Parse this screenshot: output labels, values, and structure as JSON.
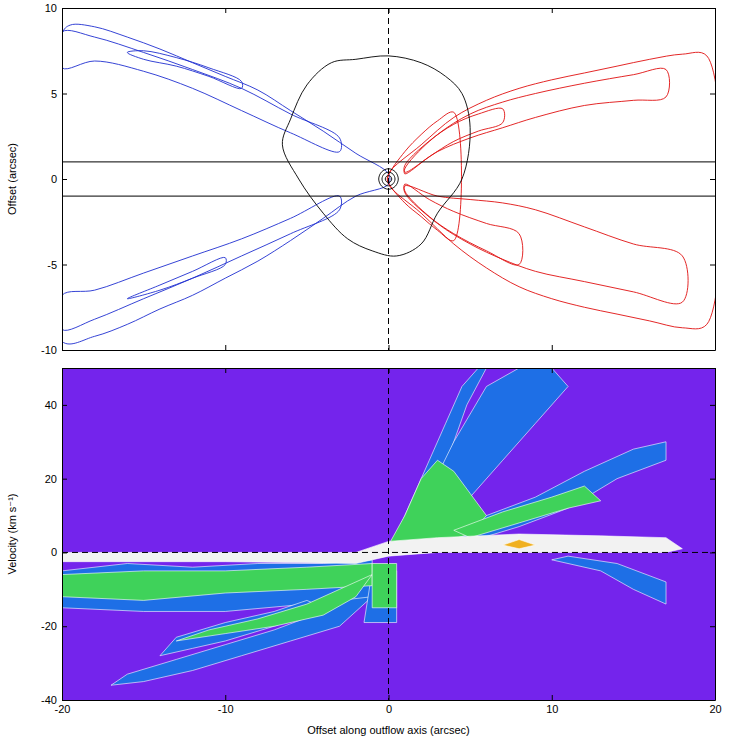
{
  "chart_data": [
    {
      "type": "contour",
      "ylabel": "Offset (arcsec)",
      "xlim": [
        -20,
        20
      ],
      "ylim": [
        -10,
        10
      ],
      "xticks": [
        -20,
        -10,
        0,
        10,
        20
      ],
      "yticks": [
        -10,
        -5,
        0,
        5,
        10
      ],
      "tick_labels": "y",
      "vlines": [
        {
          "value": 0,
          "line_style": "dashed"
        }
      ],
      "hlines": [
        {
          "value": 1,
          "line_style": "solid"
        },
        {
          "value": -1,
          "line_style": "solid"
        }
      ],
      "series": [
        {
          "color": "#1f2fd0",
          "x": [
            0,
            -2,
            -4,
            -6,
            -8,
            -10,
            -12,
            -14,
            -16,
            -18,
            -19.5,
            -20,
            -20,
            -18,
            -16,
            -14,
            -12,
            -10,
            -8,
            -6,
            -4,
            -2,
            0
          ],
          "y": [
            0.3,
            1.5,
            2.8,
            4.0,
            5.2,
            6.0,
            6.8,
            7.6,
            8.3,
            8.9,
            9.0,
            8.5,
            -9.5,
            -9.2,
            -8.5,
            -7.6,
            -6.8,
            -5.8,
            -4.8,
            -3.6,
            -2.3,
            -1.0,
            -0.3
          ]
        },
        {
          "color": "#1f2fd0",
          "x": [
            -3,
            -6,
            -9,
            -12,
            -15,
            -18,
            -20,
            -20,
            -18,
            -15,
            -12,
            -9,
            -6,
            -3
          ],
          "y": [
            2.4,
            3.8,
            5.3,
            6.4,
            7.4,
            8.3,
            8.6,
            6.5,
            6.9,
            6.3,
            5.3,
            4.0,
            2.7,
            1.6
          ]
        },
        {
          "color": "#1f2fd0",
          "x": [
            -9,
            -11,
            -13,
            -15,
            -16,
            -15,
            -13,
            -11,
            -9
          ],
          "y": [
            5.7,
            6.5,
            7.1,
            7.5,
            7.4,
            7.0,
            6.6,
            6.0,
            5.3
          ]
        },
        {
          "color": "#1f2fd0",
          "x": [
            -3,
            -6,
            -9,
            -12,
            -15,
            -18,
            -20,
            -20,
            -18,
            -15,
            -12,
            -9,
            -6,
            -3
          ],
          "y": [
            -1.8,
            -3.2,
            -4.5,
            -5.8,
            -7.0,
            -8.2,
            -8.8,
            -6.8,
            -6.5,
            -5.5,
            -4.5,
            -3.5,
            -2.3,
            -1.0
          ]
        },
        {
          "color": "#1f2fd0",
          "x": [
            -10,
            -12,
            -14,
            -16,
            -14,
            -12,
            -10
          ],
          "y": [
            -5.0,
            -5.8,
            -6.5,
            -7.0,
            -6.2,
            -5.4,
            -4.6
          ]
        },
        {
          "color": "#e01010",
          "x": [
            0,
            2,
            4,
            6,
            8,
            10,
            12,
            14,
            16,
            18,
            19.5,
            19.5,
            18,
            16,
            14,
            12,
            10,
            8,
            6,
            4,
            2,
            0
          ],
          "y": [
            0.3,
            2.0,
            3.6,
            4.6,
            5.3,
            5.8,
            6.2,
            6.6,
            7.0,
            7.3,
            7.2,
            -8.5,
            -8.7,
            -8.3,
            -7.9,
            -7.5,
            -7.0,
            -6.3,
            -5.2,
            -3.8,
            -2.0,
            -0.3
          ]
        },
        {
          "color": "#e01010",
          "x": [
            1,
            3,
            5,
            7,
            9,
            12,
            15,
            17,
            17,
            15,
            12,
            9,
            7,
            5,
            3,
            1
          ],
          "y": [
            0.8,
            2.6,
            3.8,
            4.5,
            5.0,
            5.6,
            6.1,
            6.4,
            4.8,
            4.6,
            4.3,
            3.6,
            3.0,
            2.4,
            1.6,
            0.4
          ]
        },
        {
          "color": "#e01010",
          "x": [
            1,
            2.5,
            4,
            5.5,
            7,
            7,
            5.5,
            4,
            2.5,
            1
          ],
          "y": [
            0.6,
            2.2,
            3.2,
            3.8,
            4.1,
            3.3,
            2.8,
            2.2,
            1.3,
            0.3
          ]
        },
        {
          "color": "#e01010",
          "x": [
            1,
            3,
            5,
            7,
            9,
            12,
            15,
            18,
            18,
            15,
            12,
            9,
            7,
            5,
            3,
            1
          ],
          "y": [
            -0.8,
            -2.6,
            -3.8,
            -4.7,
            -5.4,
            -6.0,
            -6.6,
            -7.2,
            -4.5,
            -3.8,
            -2.8,
            -1.8,
            -1.4,
            -1.2,
            -1.0,
            -0.4
          ]
        },
        {
          "color": "#e01010",
          "x": [
            1,
            2.5,
            4,
            6,
            8,
            8,
            6,
            4,
            2.5,
            1
          ],
          "y": [
            -0.7,
            -2.2,
            -3.2,
            -4.2,
            -5.0,
            -3.2,
            -2.6,
            -1.9,
            -1.2,
            -0.3
          ]
        },
        {
          "color": "#e01010",
          "x": [
            0,
            1,
            2,
            3,
            4,
            4,
            3,
            2,
            1,
            0
          ],
          "y": [
            0.2,
            1.6,
            2.6,
            3.4,
            3.9,
            -3.6,
            -3.0,
            -2.2,
            -1.4,
            -0.2
          ]
        },
        {
          "color": "#000000",
          "x": [
            -6,
            -5,
            -3.5,
            -2,
            0,
            2,
            3.5,
            4.5,
            5,
            4.5,
            3,
            2,
            0.5,
            -1,
            -2.5,
            -4,
            -5.5,
            -6.5
          ],
          "y": [
            3.5,
            5.5,
            6.8,
            7.0,
            7.2,
            6.8,
            6.0,
            5.0,
            3.0,
            0,
            -2,
            -3.8,
            -4.5,
            -4.2,
            -3.5,
            -2.0,
            0,
            2
          ]
        },
        {
          "color": "#000000",
          "x": [
            0.6,
            0.42,
            0,
            -0.42,
            -0.6,
            -0.42,
            0,
            0.42
          ],
          "y": [
            0,
            0.42,
            0.6,
            0.42,
            0,
            -0.42,
            -0.6,
            -0.42
          ]
        },
        {
          "color": "#000000",
          "x": [
            0.4,
            0.28,
            0,
            -0.28,
            -0.4,
            -0.28,
            0,
            0.28
          ],
          "y": [
            0,
            0.28,
            0.4,
            0.28,
            0,
            -0.28,
            -0.4,
            -0.28
          ]
        },
        {
          "color": "#000000",
          "x": [
            0.2,
            0.14,
            0,
            -0.14,
            -0.2,
            -0.14,
            0,
            0.14
          ],
          "y": [
            0,
            0.14,
            0.2,
            0.14,
            0,
            -0.14,
            -0.2,
            -0.14
          ]
        }
      ]
    },
    {
      "type": "area",
      "xlabel": "Offset along outflow axis (arcsec)",
      "ylabel": "Velocity (km s⁻¹)",
      "xlim": [
        -20,
        20
      ],
      "ylim": [
        -40,
        50
      ],
      "xticks": [
        -20,
        -10,
        0,
        10,
        20
      ],
      "yticks": [
        -40,
        -20,
        0,
        20,
        40
      ],
      "vlines": [
        {
          "value": 0,
          "line_style": "dashed"
        }
      ],
      "hlines": [
        {
          "value": 0,
          "line_style": "dashed"
        }
      ],
      "series": [
        {
          "color": "#1e6fe6",
          "x": [
            0.5,
            1.5,
            2.5,
            3.5,
            4.5,
            5.5,
            6,
            4.8,
            4,
            3.2,
            2.2,
            1.2
          ],
          "y": [
            5,
            15,
            25,
            35,
            45,
            50,
            50,
            40,
            30,
            20,
            12,
            6
          ]
        },
        {
          "color": "#1e6fe6",
          "x": [
            2,
            4,
            6,
            8,
            10,
            11,
            9,
            7,
            5,
            3
          ],
          "y": [
            12,
            30,
            45,
            50,
            50,
            45,
            35,
            25,
            15,
            8
          ]
        },
        {
          "color": "#1e6fe6",
          "x": [
            3,
            6,
            9,
            12,
            15,
            17,
            17,
            14,
            11,
            8,
            5
          ],
          "y": [
            5,
            10,
            15,
            22,
            28,
            30,
            25,
            20,
            12,
            7,
            3
          ]
        },
        {
          "color": "#1e6fe6",
          "x": [
            10,
            13,
            15,
            17,
            17,
            14,
            11
          ],
          "y": [
            -2,
            -5,
            -10,
            -14,
            -8,
            -3,
            -1
          ]
        },
        {
          "color": "#1e6fe6",
          "x": [
            0,
            -2,
            -4,
            -7,
            -10,
            -13,
            -16,
            -17,
            -15,
            -12,
            -9,
            -6,
            -3,
            -1
          ],
          "y": [
            -4,
            -10,
            -16,
            -21,
            -25,
            -29,
            -33,
            -36,
            -35,
            -32,
            -28,
            -24,
            -20,
            -12
          ]
        },
        {
          "color": "#1e6fe6",
          "x": [
            -20,
            -16,
            -12,
            -8,
            -4,
            -1,
            -1,
            -5,
            -10,
            -15,
            -20
          ],
          "y": [
            -5,
            -3,
            -4,
            -3,
            -3,
            -2,
            -12,
            -14,
            -16,
            -16,
            -15
          ]
        },
        {
          "color": "#1e6fe6",
          "x": [
            -4,
            -7,
            -10,
            -12,
            -14,
            -13,
            -10,
            -7,
            -5
          ],
          "y": [
            -15,
            -20,
            -24,
            -26,
            -28,
            -23,
            -19,
            -16,
            -13
          ]
        },
        {
          "color": "#1e6fe6",
          "x": [
            -1,
            0.5,
            0.5,
            -1.5
          ],
          "y": [
            -5,
            -5,
            -19,
            -19
          ]
        },
        {
          "color": "#3fd25a",
          "x": [
            0,
            1,
            2,
            3,
            4,
            5,
            6,
            5,
            3.5,
            2,
            1
          ],
          "y": [
            2,
            10,
            20,
            25,
            22,
            16,
            10,
            5,
            3,
            2,
            1
          ]
        },
        {
          "color": "#3fd25a",
          "x": [
            4,
            7,
            10,
            12,
            13,
            11,
            8,
            5
          ],
          "y": [
            6,
            11,
            15,
            18,
            14,
            12,
            8,
            4
          ]
        },
        {
          "color": "#3fd25a",
          "x": [
            -20,
            -15,
            -10,
            -5,
            -1,
            -1,
            -5,
            -10,
            -15,
            -20
          ],
          "y": [
            -6,
            -5,
            -5,
            -4,
            -3,
            -9,
            -10,
            -11,
            -13,
            -12
          ]
        },
        {
          "color": "#3fd25a",
          "x": [
            -1,
            -3,
            -5,
            -8,
            -11,
            -13,
            -10,
            -7,
            -4,
            -2
          ],
          "y": [
            -6,
            -10,
            -14,
            -18,
            -21,
            -24,
            -22,
            -20,
            -17,
            -12
          ]
        },
        {
          "color": "#3fd25a",
          "x": [
            -1,
            0.5,
            0.5,
            -1
          ],
          "y": [
            -3,
            -3,
            -15,
            -15
          ]
        },
        {
          "color": "#f2f2f2",
          "x": [
            -20,
            -10,
            -2,
            0,
            3,
            8,
            13,
            17,
            18,
            17,
            13,
            8,
            3,
            0,
            -2,
            -10,
            -20
          ],
          "y": [
            -2.5,
            -2.5,
            -3,
            -1,
            0,
            0,
            0,
            0,
            1,
            4,
            4.5,
            5,
            4,
            3,
            0,
            0,
            0
          ]
        },
        {
          "color": "#f0b020",
          "x": [
            7,
            8,
            9,
            8
          ],
          "y": [
            2,
            3.5,
            2,
            1
          ]
        }
      ]
    }
  ]
}
